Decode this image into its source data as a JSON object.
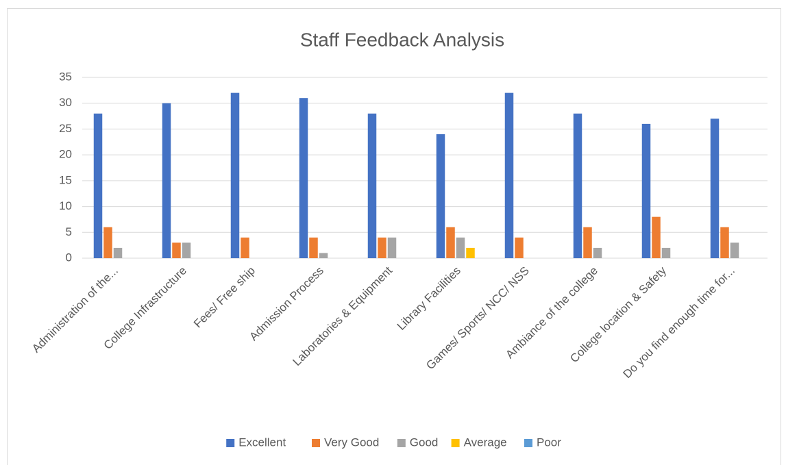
{
  "chart_data": {
    "type": "bar",
    "title": "Staff Feedback Analysis",
    "categories": [
      "Administration of the...",
      "College Infrastructure",
      "Fees/ Free ship",
      "Admission Process",
      "Laboratories & Equipment",
      "Library Facilities",
      "Games/ Sports/ NCC/ NSS",
      "Ambiance of the college",
      "College location & Safety",
      "Do you find enough time for..."
    ],
    "series": [
      {
        "name": "Excellent",
        "color": "#4472c4",
        "values": [
          28,
          30,
          32,
          31,
          28,
          24,
          32,
          28,
          26,
          27
        ]
      },
      {
        "name": "Very Good",
        "color": "#ed7d31",
        "values": [
          6,
          3,
          4,
          4,
          4,
          6,
          4,
          6,
          8,
          6
        ]
      },
      {
        "name": "Good",
        "color": "#a5a5a5",
        "values": [
          2,
          3,
          0,
          1,
          4,
          4,
          0,
          2,
          2,
          3
        ]
      },
      {
        "name": "Average",
        "color": "#ffc000",
        "values": [
          0,
          0,
          0,
          0,
          0,
          2,
          0,
          0,
          0,
          0
        ]
      },
      {
        "name": "Poor",
        "color": "#5b9bd5",
        "values": [
          0,
          0,
          0,
          0,
          0,
          0,
          0,
          0,
          0,
          0
        ]
      }
    ],
    "ylim": [
      0,
      35
    ],
    "yticks": [
      0,
      5,
      10,
      15,
      20,
      25,
      30,
      35
    ],
    "grid": true,
    "legend": "bottom"
  }
}
